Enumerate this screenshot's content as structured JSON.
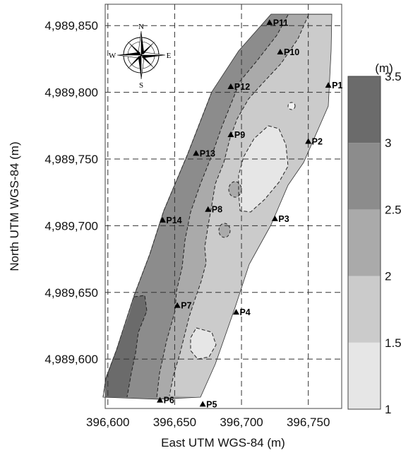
{
  "chart_data": {
    "type": "contour-map",
    "xlabel": "East UTM WGS-84 (m)",
    "ylabel": "North UTM WGS-84 (m)",
    "x_ticks": [
      {
        "value": 396600,
        "label": "396,600"
      },
      {
        "value": 396650,
        "label": "396,650"
      },
      {
        "value": 396700,
        "label": "396,700"
      },
      {
        "value": 396750,
        "label": "396,750"
      }
    ],
    "y_ticks": [
      {
        "value": 4989600,
        "label": "4,989,600"
      },
      {
        "value": 4989650,
        "label": "4,989,650"
      },
      {
        "value": 4989700,
        "label": "4,989,700"
      },
      {
        "value": 4989750,
        "label": "4,989,750"
      },
      {
        "value": 4989800,
        "label": "4,989,800"
      },
      {
        "value": 4989850,
        "label": "4,989,850"
      }
    ],
    "xlim": [
      396598,
      396775
    ],
    "ylim": [
      4989563,
      4989866
    ],
    "grid": "dashed",
    "points": [
      {
        "name": "P1",
        "x": 396765,
        "y": 4989805
      },
      {
        "name": "P2",
        "x": 396750,
        "y": 4989763
      },
      {
        "name": "P3",
        "x": 396725,
        "y": 4989705
      },
      {
        "name": "P4",
        "x": 396696,
        "y": 4989635
      },
      {
        "name": "P5",
        "x": 396671,
        "y": 4989566
      },
      {
        "name": "P6",
        "x": 396639,
        "y": 4989569
      },
      {
        "name": "P7",
        "x": 396652,
        "y": 4989640
      },
      {
        "name": "P8",
        "x": 396675,
        "y": 4989712
      },
      {
        "name": "P9",
        "x": 396692,
        "y": 4989768
      },
      {
        "name": "P10",
        "x": 396729,
        "y": 4989830
      },
      {
        "name": "P11",
        "x": 396721,
        "y": 4989852
      },
      {
        "name": "P12",
        "x": 396692,
        "y": 4989804
      },
      {
        "name": "P13",
        "x": 396666,
        "y": 4989754
      },
      {
        "name": "P14",
        "x": 396641,
        "y": 4989704
      }
    ],
    "colorbar": {
      "unit": "(m)",
      "ticks": [
        "1",
        "1.5",
        "2",
        "2.5",
        "3",
        "3.5"
      ],
      "levels": [
        {
          "range": [
            1.0,
            1.5
          ],
          "color": "#e6e6e6"
        },
        {
          "range": [
            1.5,
            2.0
          ],
          "color": "#cbcbcb"
        },
        {
          "range": [
            2.0,
            2.5
          ],
          "color": "#aaaaaa"
        },
        {
          "range": [
            2.5,
            3.0
          ],
          "color": "#8c8c8c"
        },
        {
          "range": [
            3.0,
            3.5
          ],
          "color": "#6b6b6b"
        }
      ]
    }
  },
  "compass": {
    "n": "N",
    "s": "S",
    "e": "E",
    "w": "W"
  }
}
